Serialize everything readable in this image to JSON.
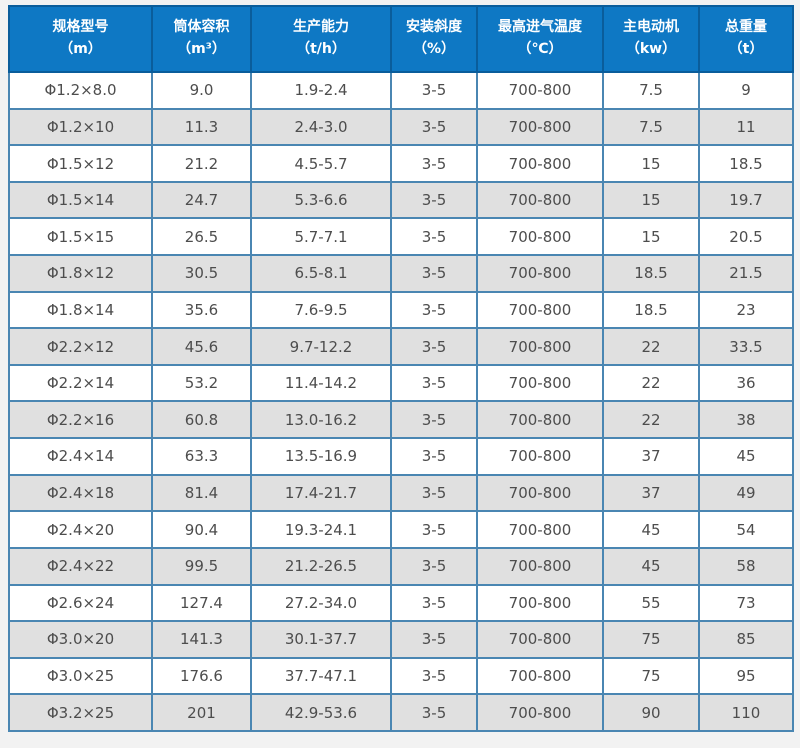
{
  "table": {
    "columns": [
      {
        "label": "规格型号",
        "unit": "（m）"
      },
      {
        "label": "筒体容积",
        "unit": "（m³）"
      },
      {
        "label": "生产能力",
        "unit": "（t/h）"
      },
      {
        "label": "安装斜度",
        "unit": "（%）"
      },
      {
        "label": "最高进气温度",
        "unit": "（℃）"
      },
      {
        "label": "主电动机",
        "unit": "（kw）"
      },
      {
        "label": "总重量",
        "unit": "（t）"
      }
    ],
    "rows": [
      [
        "Φ1.2×8.0",
        "9.0",
        "1.9-2.4",
        "3-5",
        "700-800",
        "7.5",
        "9"
      ],
      [
        "Φ1.2×10",
        "11.3",
        "2.4-3.0",
        "3-5",
        "700-800",
        "7.5",
        "11"
      ],
      [
        "Φ1.5×12",
        "21.2",
        "4.5-5.7",
        "3-5",
        "700-800",
        "15",
        "18.5"
      ],
      [
        "Φ1.5×14",
        "24.7",
        "5.3-6.6",
        "3-5",
        "700-800",
        "15",
        "19.7"
      ],
      [
        "Φ1.5×15",
        "26.5",
        "5.7-7.1",
        "3-5",
        "700-800",
        "15",
        "20.5"
      ],
      [
        "Φ1.8×12",
        "30.5",
        "6.5-8.1",
        "3-5",
        "700-800",
        "18.5",
        "21.5"
      ],
      [
        "Φ1.8×14",
        "35.6",
        "7.6-9.5",
        "3-5",
        "700-800",
        "18.5",
        "23"
      ],
      [
        "Φ2.2×12",
        "45.6",
        "9.7-12.2",
        "3-5",
        "700-800",
        "22",
        "33.5"
      ],
      [
        "Φ2.2×14",
        "53.2",
        "11.4-14.2",
        "3-5",
        "700-800",
        "22",
        "36"
      ],
      [
        "Φ2.2×16",
        "60.8",
        "13.0-16.2",
        "3-5",
        "700-800",
        "22",
        "38"
      ],
      [
        "Φ2.4×14",
        "63.3",
        "13.5-16.9",
        "3-5",
        "700-800",
        "37",
        "45"
      ],
      [
        "Φ2.4×18",
        "81.4",
        "17.4-21.7",
        "3-5",
        "700-800",
        "37",
        "49"
      ],
      [
        "Φ2.4×20",
        "90.4",
        "19.3-24.1",
        "3-5",
        "700-800",
        "45",
        "54"
      ],
      [
        "Φ2.4×22",
        "99.5",
        "21.2-26.5",
        "3-5",
        "700-800",
        "45",
        "58"
      ],
      [
        "Φ2.6×24",
        "127.4",
        "27.2-34.0",
        "3-5",
        "700-800",
        "55",
        "73"
      ],
      [
        "Φ3.0×20",
        "141.3",
        "30.1-37.7",
        "3-5",
        "700-800",
        "75",
        "85"
      ],
      [
        "Φ3.0×25",
        "176.6",
        "37.7-47.1",
        "3-5",
        "700-800",
        "75",
        "95"
      ],
      [
        "Φ3.2×25",
        "201",
        "42.9-53.6",
        "3-5",
        "700-800",
        "90",
        "110"
      ]
    ]
  },
  "colors": {
    "page_bg": "#f2f2f2",
    "header_bg": "#0e78c4",
    "header_border": "#0a5d9b",
    "header_text": "#ffffff",
    "body_border": "#4a86b2",
    "row_even_bg": "#e0e0e0",
    "row_odd_bg": "#ffffff",
    "body_text": "#4d4d4d"
  }
}
